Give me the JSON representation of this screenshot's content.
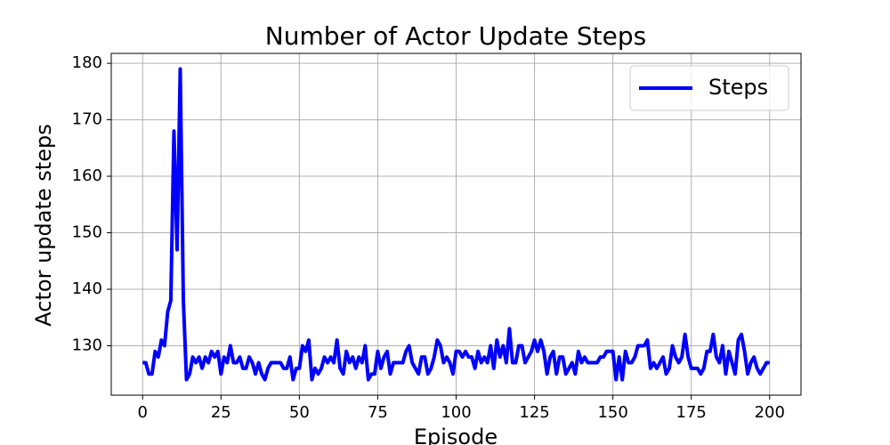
{
  "chart_data": {
    "type": "line",
    "title": "Number of Actor Update Steps",
    "x_label": "Episode",
    "y_label": "Actor update steps",
    "x": [
      0,
      1,
      2,
      3,
      4,
      5,
      6,
      7,
      8,
      9,
      10,
      11,
      12,
      13,
      14,
      15,
      16,
      17,
      18,
      19,
      20,
      21,
      22,
      23,
      24,
      25,
      26,
      27,
      28,
      29,
      30,
      31,
      32,
      33,
      34,
      35,
      36,
      37,
      38,
      39,
      40,
      41,
      42,
      43,
      44,
      45,
      46,
      47,
      48,
      49,
      50,
      51,
      52,
      53,
      54,
      55,
      56,
      57,
      58,
      59,
      60,
      61,
      62,
      63,
      64,
      65,
      66,
      67,
      68,
      69,
      70,
      71,
      72,
      73,
      74,
      75,
      76,
      77,
      78,
      79,
      80,
      81,
      82,
      83,
      84,
      85,
      86,
      87,
      88,
      89,
      90,
      91,
      92,
      93,
      94,
      95,
      96,
      97,
      98,
      99,
      100,
      101,
      102,
      103,
      104,
      105,
      106,
      107,
      108,
      109,
      110,
      111,
      112,
      113,
      114,
      115,
      116,
      117,
      118,
      119,
      120,
      121,
      122,
      123,
      124,
      125,
      126,
      127,
      128,
      129,
      130,
      131,
      132,
      133,
      134,
      135,
      136,
      137,
      138,
      139,
      140,
      141,
      142,
      143,
      144,
      145,
      146,
      147,
      148,
      149,
      150,
      151,
      152,
      153,
      154,
      155,
      156,
      157,
      158,
      159,
      160,
      161,
      162,
      163,
      164,
      165,
      166,
      167,
      168,
      169,
      170,
      171,
      172,
      173,
      174,
      175,
      176,
      177,
      178,
      179,
      180,
      181,
      182,
      183,
      184,
      185,
      186,
      187,
      188,
      189,
      190,
      191,
      192,
      193,
      194,
      195,
      196,
      197,
      198,
      199,
      200
    ],
    "series": [
      {
        "name": "Steps",
        "color": "#0000ff",
        "values": [
          127,
          127,
          125,
          125,
          129,
          128,
          131,
          130,
          136,
          138,
          168,
          147,
          179,
          138,
          124,
          125,
          128,
          127,
          128,
          126,
          128,
          127,
          129,
          128,
          129,
          125,
          128,
          127,
          130,
          127,
          127,
          128,
          126,
          126,
          128,
          127,
          125,
          127,
          125,
          124,
          126,
          127,
          127,
          127,
          127,
          126,
          126,
          128,
          124,
          126,
          126,
          130,
          129,
          131,
          124,
          126,
          125,
          126,
          128,
          127,
          128,
          127,
          131,
          126,
          125,
          129,
          127,
          128,
          126,
          128,
          127,
          130,
          124,
          125,
          125,
          129,
          126,
          128,
          129,
          125,
          127,
          127,
          127,
          127,
          129,
          130,
          127,
          126,
          125,
          128,
          128,
          125,
          126,
          128,
          131,
          130,
          127,
          128,
          127,
          125,
          129,
          129,
          128,
          129,
          128,
          128,
          126,
          129,
          127,
          128,
          127,
          130,
          126,
          131,
          128,
          130,
          127,
          133,
          127,
          127,
          130,
          130,
          127,
          128,
          129,
          131,
          129,
          131,
          129,
          125,
          128,
          129,
          125,
          128,
          128,
          125,
          126,
          127,
          125,
          129,
          127,
          128,
          127,
          127,
          127,
          127,
          128,
          128,
          129,
          129,
          129,
          124,
          128,
          124,
          129,
          127,
          127,
          128,
          130,
          130,
          130,
          131,
          126,
          127,
          126,
          127,
          128,
          125,
          126,
          130,
          128,
          127,
          128,
          132,
          128,
          126,
          126,
          126,
          125,
          126,
          129,
          129,
          132,
          128,
          127,
          130,
          125,
          129,
          127,
          125,
          131,
          132,
          129,
          125,
          127,
          128,
          126,
          125,
          126,
          127,
          127
        ]
      }
    ],
    "xlim": [
      -10,
      210
    ],
    "ylim": [
      121.25,
      181.75
    ],
    "xticks": [
      0,
      25,
      50,
      75,
      100,
      125,
      150,
      175,
      200
    ],
    "yticks": [
      130,
      140,
      150,
      160,
      170,
      180
    ],
    "grid": true,
    "legend": "upper right"
  }
}
